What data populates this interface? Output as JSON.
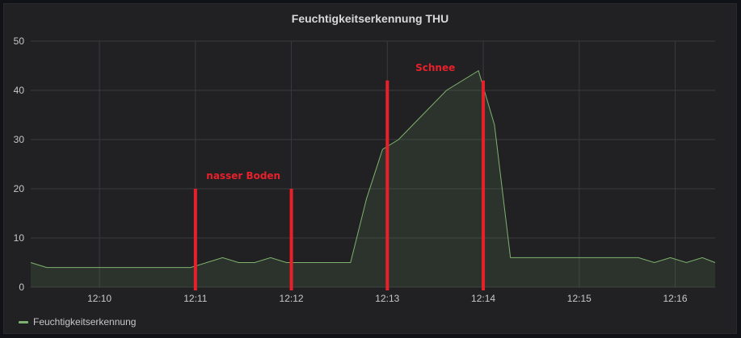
{
  "panel": {
    "title": "Feuchtigkeitserkennung THU",
    "legend": [
      {
        "name": "Feuchtigkeitserkennung",
        "color": "#7eb26d"
      }
    ]
  },
  "chart_data": {
    "type": "area",
    "title": "Feuchtigkeitserkennung THU",
    "xlabel": "",
    "ylabel": "",
    "x_unit": "minutes (12:09.3 – 12:16.4)",
    "xlim": [
      "12:09:17",
      "12:16:25"
    ],
    "ylim": [
      0,
      50
    ],
    "y_ticks": [
      0,
      10,
      20,
      30,
      40,
      50
    ],
    "x_ticks": [
      "12:10",
      "12:11",
      "12:12",
      "12:13",
      "12:14",
      "12:15",
      "12:16"
    ],
    "grid": true,
    "legend_position": "bottom-left",
    "series": [
      {
        "name": "Feuchtigkeitserkennung",
        "color": "#7eb26d",
        "x": [
          "12:09:17",
          "12:09:27",
          "12:10:57",
          "12:11:07",
          "12:11:17",
          "12:11:27",
          "12:11:37",
          "12:11:47",
          "12:11:57",
          "12:12:07",
          "12:12:37",
          "12:12:47",
          "12:12:57",
          "12:13:07",
          "12:13:37",
          "12:13:57",
          "12:14:07",
          "12:14:17",
          "12:15:37",
          "12:15:47",
          "12:15:57",
          "12:16:07",
          "12:16:17",
          "12:16:25"
        ],
        "values": [
          5,
          4,
          4,
          5,
          6,
          5,
          5,
          6,
          5,
          5,
          5,
          18,
          28,
          30,
          40,
          44,
          33,
          6,
          6,
          5,
          6,
          5,
          6,
          5
        ]
      }
    ],
    "annotations": [
      {
        "label": "nasser Boden",
        "color": "#e8202a",
        "x_lines": [
          "12:11",
          "12:12"
        ],
        "y_top": 20
      },
      {
        "label": "Schnee",
        "color": "#e8202a",
        "x_lines": [
          "12:13",
          "12:14"
        ],
        "y_top": 42
      }
    ]
  }
}
